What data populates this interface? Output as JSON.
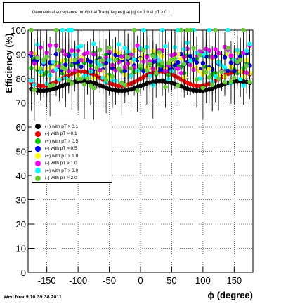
{
  "title": "Geometrical acceptance for Global Tra(ϕ(degree)) at |η| <= 1.0 at pT > 0.1",
  "timestamp": "Wed Nov  9 10:39:38 2011",
  "chart_data": {
    "type": "scatter",
    "title": "Geometrical acceptance for Global Tra(ϕ(degree)) at |η| <= 1.0 at pT > 0.1",
    "xlabel": "ϕ (degree)",
    "ylabel": "Efficiency (%)",
    "xlim": [
      -180,
      180
    ],
    "ylim": [
      0,
      100
    ],
    "xticks": [
      -150,
      -100,
      -50,
      0,
      50,
      100,
      150
    ],
    "yticks": [
      0,
      10,
      20,
      30,
      40,
      50,
      60,
      70,
      80,
      90,
      100
    ],
    "grid": true,
    "legend_position": "left-middle",
    "series": [
      {
        "name": "(+) with pT > 0.1",
        "color": "#000000",
        "mean": 77,
        "spread": 2
      },
      {
        "name": "(-) with pT > 0.1",
        "color": "#ff0000",
        "mean": 80,
        "spread": 3
      },
      {
        "name": "(+) with pT > 0.5",
        "color": "#00cc00",
        "mean": 86,
        "spread": 5
      },
      {
        "name": "(-) with pT > 0.5",
        "color": "#0000ff",
        "mean": 87,
        "spread": 4
      },
      {
        "name": "(+) with pT > 1.0",
        "color": "#ffff00",
        "mean": 86,
        "spread": 6
      },
      {
        "name": "(-) with pT > 1.0",
        "color": "#ff00ff",
        "mean": 88,
        "spread": 6
      },
      {
        "name": "(+) with pT > 2.0",
        "color": "#00ffff",
        "mean": 86,
        "spread": 9
      },
      {
        "name": "(-) with pT > 2.0",
        "color": "#66cc33",
        "mean": 84,
        "spread": 9
      }
    ]
  }
}
